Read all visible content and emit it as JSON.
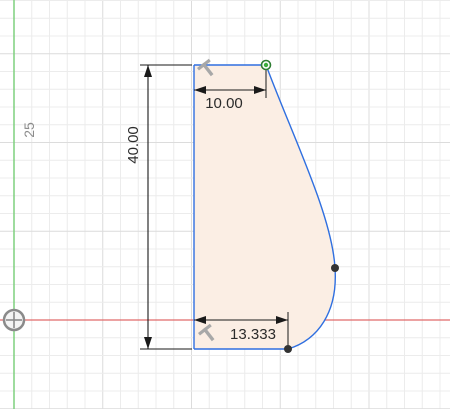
{
  "viewport": {
    "ruler_label": "25"
  },
  "sketch": {
    "dimensions": {
      "top_width": "10.00",
      "height": "40.00",
      "bottom_width": "13.333"
    },
    "colors": {
      "profile_fill": "#fbeee4",
      "sketch_line": "#2f6fe0",
      "dimension_line": "#1a1a1a",
      "y_axis": "#7ed07e",
      "x_axis": "#e06a6a",
      "grid_minor": "#ececec",
      "grid_major": "#dcdcdc",
      "point_active": "#3cae3c",
      "point": "#333333"
    },
    "icons": {
      "top_constraint": "horizontal-constraint-icon",
      "bottom_constraint": "horizontal-constraint-icon",
      "origin": "origin-icon"
    }
  }
}
